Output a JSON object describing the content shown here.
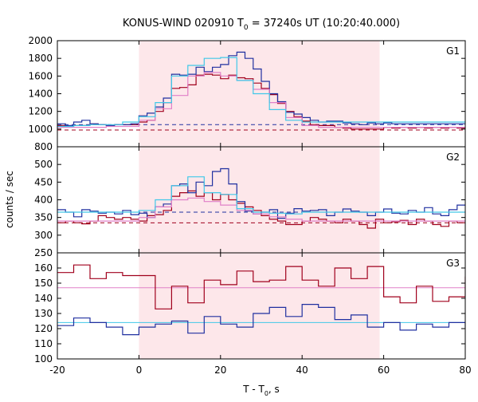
{
  "chart_data": {
    "type": "line",
    "title_main": "KONUS-WIND 020910 T",
    "title_sub": "0",
    "title_rest": " = 37240s UT (10:20:40.000)",
    "xlabel_main": "T - T",
    "xlabel_sub": "0",
    "xlabel_rest": ", s",
    "ylabel": "counts / sec",
    "xlim": [
      -20,
      80
    ],
    "x_ticks": [
      -20,
      0,
      20,
      40,
      60,
      80
    ],
    "shaded_interval": [
      0,
      59
    ],
    "colors": {
      "red": "#a0001c",
      "blue": "#2030a0",
      "pink": "#e080c8",
      "cyan": "#40c8e8",
      "shade": "#fde7ea"
    },
    "panels": [
      {
        "label": "G1",
        "ylim": [
          800,
          2000
        ],
        "y_ticks": [
          800,
          1000,
          1200,
          1400,
          1600,
          1800,
          2000
        ],
        "background_levels": {
          "red": 990,
          "blue": 1050
        },
        "series": [
          {
            "color": "red",
            "x_start": -20,
            "step": 2,
            "values": [
              1040,
              1030,
              1040,
              1040,
              1060,
              1050,
              1040,
              1050,
              1050,
              1050,
              1080,
              1100,
              1200,
              1300,
              1460,
              1470,
              1500,
              1610,
              1620,
              1610,
              1570,
              1610,
              1580,
              1570,
              1520,
              1460,
              1390,
              1290,
              1200,
              1140,
              1090,
              1050,
              1040,
              1040,
              1020,
              1010,
              1000,
              1000,
              1000,
              1000,
              1020,
              1010,
              1020,
              1010,
              1020,
              1010,
              1020,
              1010,
              1020,
              1010
            ]
          },
          {
            "color": "blue",
            "x_start": -20,
            "step": 2,
            "values": [
              1060,
              1040,
              1080,
              1100,
              1060,
              1050,
              1040,
              1050,
              1050,
              1060,
              1150,
              1180,
              1250,
              1350,
              1620,
              1610,
              1620,
              1700,
              1650,
              1700,
              1730,
              1830,
              1870,
              1800,
              1680,
              1540,
              1400,
              1310,
              1190,
              1170,
              1130,
              1100,
              1080,
              1090,
              1090,
              1070,
              1060,
              1050,
              1070,
              1060,
              1070,
              1060,
              1060,
              1060,
              1060,
              1060,
              1060,
              1060,
              1060,
              1060
            ]
          },
          {
            "color": "pink",
            "x_start": -20,
            "step": 4,
            "values": [
              1020,
              1020,
              1020,
              1030,
              1030,
              1100,
              1230,
              1380,
              1600,
              1640,
              1600,
              1550,
              1450,
              1300,
              1130,
              1040,
              1020,
              1020,
              1020,
              1020,
              1020,
              1020,
              1020,
              1020,
              1020
            ]
          },
          {
            "color": "cyan",
            "x_start": -20,
            "step": 4,
            "values": [
              1030,
              1040,
              1050,
              1050,
              1080,
              1140,
              1300,
              1600,
              1720,
              1800,
              1810,
              1550,
              1400,
              1220,
              1100,
              1080,
              1080,
              1080,
              1080,
              1080,
              1080,
              1080,
              1080,
              1080,
              1080
            ]
          }
        ]
      },
      {
        "label": "G2",
        "ylim": [
          250,
          550
        ],
        "y_ticks": [
          250,
          300,
          350,
          400,
          450,
          500
        ],
        "background_levels": {
          "red": 335,
          "blue": 365
        },
        "series": [
          {
            "color": "red",
            "x_start": -20,
            "step": 2,
            "values": [
              335,
              340,
              335,
              332,
              340,
              355,
              350,
              345,
              350,
              345,
              340,
              355,
              358,
              370,
              410,
              420,
              425,
              410,
              420,
              400,
              415,
              400,
              390,
              380,
              370,
              355,
              345,
              340,
              330,
              330,
              340,
              350,
              345,
              340,
              335,
              345,
              340,
              330,
              320,
              345,
              335,
              338,
              342,
              330,
              345,
              340,
              330,
              325,
              340,
              335
            ]
          },
          {
            "color": "blue",
            "x_start": -20,
            "step": 2,
            "values": [
              372,
              365,
              352,
              372,
              368,
              362,
              365,
              360,
              370,
              358,
              362,
              350,
              380,
              388,
              440,
              445,
              420,
              450,
              440,
              480,
              488,
              445,
              395,
              368,
              360,
              365,
              372,
              348,
              362,
              375,
              368,
              370,
              372,
              355,
              365,
              374,
              368,
              365,
              355,
              365,
              374,
              362,
              360,
              370,
              365,
              378,
              360,
              355,
              372,
              385
            ]
          },
          {
            "color": "pink",
            "x_start": -20,
            "step": 4,
            "values": [
              340,
              340,
              340,
              340,
              340,
              350,
              380,
              400,
              405,
              395,
              385,
              370,
              360,
              352,
              345,
              340,
              340,
              340,
              340,
              340,
              340,
              340,
              340,
              340,
              340
            ]
          },
          {
            "color": "cyan",
            "x_start": -20,
            "step": 4,
            "values": [
              365,
              365,
              365,
              365,
              365,
              370,
              400,
              440,
              465,
              420,
              415,
              375,
              365,
              362,
              360,
              365,
              365,
              365,
              365,
              365,
              365,
              365,
              365,
              365,
              365
            ]
          }
        ]
      },
      {
        "label": "G3",
        "ylim": [
          100,
          170
        ],
        "y_ticks": [
          100,
          110,
          120,
          130,
          140,
          150,
          160
        ],
        "background_levels": {
          "pink": 147,
          "cyan": 124
        },
        "series": [
          {
            "color": "red",
            "x_start": -20,
            "step": 4,
            "values": [
              157,
              162,
              153,
              157,
              155,
              155,
              133,
              148,
              137,
              152,
              149,
              158,
              151,
              152,
              161,
              152,
              148,
              160,
              153,
              161,
              141,
              137,
              148,
              138,
              141,
              154,
              149,
              142,
              144,
              145
            ]
          },
          {
            "color": "blue",
            "x_start": -20,
            "step": 4,
            "values": [
              122,
              127,
              124,
              121,
              116,
              121,
              123,
              125,
              117,
              128,
              123,
              121,
              130,
              134,
              128,
              136,
              134,
              126,
              129,
              121,
              124,
              119,
              123,
              121,
              124,
              121,
              116,
              110,
              120,
              136
            ]
          }
        ]
      }
    ]
  }
}
